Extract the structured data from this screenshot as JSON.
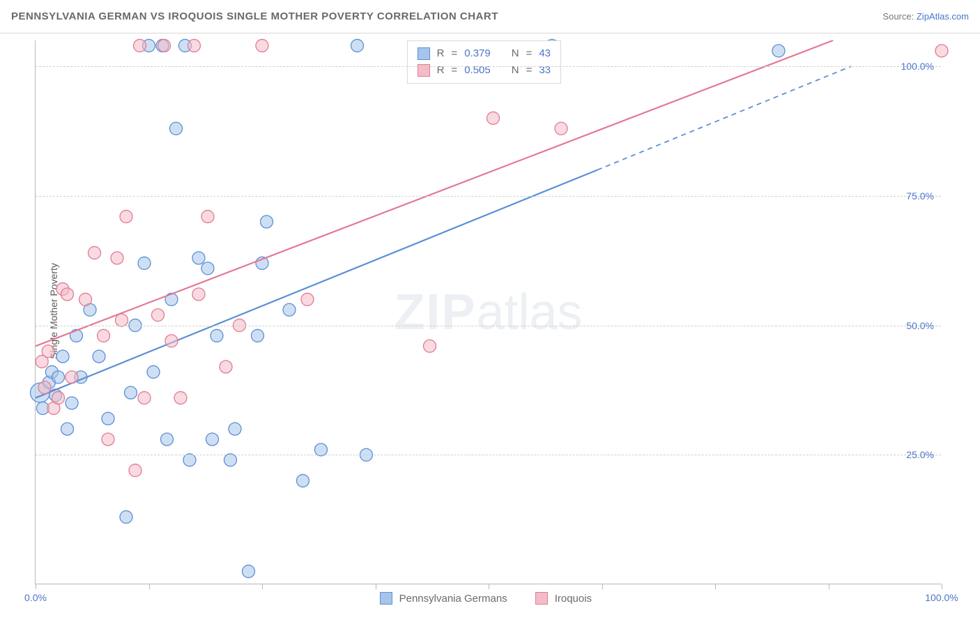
{
  "header": {
    "title": "PENNSYLVANIA GERMAN VS IROQUOIS SINGLE MOTHER POVERTY CORRELATION CHART",
    "source_label": "Source:",
    "source_link": "ZipAtlas.com"
  },
  "chart": {
    "type": "scatter",
    "ylabel": "Single Mother Poverty",
    "xlim": [
      0,
      100
    ],
    "ylim": [
      0,
      105
    ],
    "xtick_positions": [
      0,
      12.5,
      25,
      37.5,
      50,
      62.5,
      75,
      87.5,
      100
    ],
    "xtick_labels": {
      "0": "0.0%",
      "100": "100.0%"
    },
    "ytick_positions": [
      25,
      50,
      75,
      100
    ],
    "ytick_labels": [
      "25.0%",
      "50.0%",
      "75.0%",
      "100.0%"
    ],
    "grid_color": "#d0d0d0",
    "axis_color": "#b8b8b8",
    "background_color": "#ffffff",
    "label_fontsize": 14,
    "tick_color": "#4a74c9",
    "watermark": "ZIPatlas",
    "marker_radius": 9,
    "marker_opacity": 0.55,
    "series": [
      {
        "name": "Pennsylvania Germans",
        "color_fill": "#a7c4ea",
        "color_stroke": "#5b8fd6",
        "R": 0.379,
        "N": 43,
        "trend": {
          "x1": 0,
          "y1": 36,
          "x2": 62,
          "y2": 80,
          "dash_x2": 90,
          "dash_y2": 100
        },
        "points": [
          {
            "x": 0.5,
            "y": 37,
            "r": 14
          },
          {
            "x": 0.8,
            "y": 34
          },
          {
            "x": 1.5,
            "y": 39
          },
          {
            "x": 1.8,
            "y": 41
          },
          {
            "x": 2.2,
            "y": 36.5
          },
          {
            "x": 2.5,
            "y": 40
          },
          {
            "x": 3.0,
            "y": 44
          },
          {
            "x": 3.5,
            "y": 30
          },
          {
            "x": 4.0,
            "y": 35
          },
          {
            "x": 4.5,
            "y": 48
          },
          {
            "x": 5.0,
            "y": 40
          },
          {
            "x": 6.0,
            "y": 53
          },
          {
            "x": 7.0,
            "y": 44
          },
          {
            "x": 8.0,
            "y": 32
          },
          {
            "x": 10.0,
            "y": 13
          },
          {
            "x": 10.5,
            "y": 37
          },
          {
            "x": 11.0,
            "y": 50
          },
          {
            "x": 12.0,
            "y": 62
          },
          {
            "x": 12.5,
            "y": 104
          },
          {
            "x": 13.0,
            "y": 41
          },
          {
            "x": 14.0,
            "y": 104
          },
          {
            "x": 14.5,
            "y": 28
          },
          {
            "x": 15.0,
            "y": 55
          },
          {
            "x": 15.5,
            "y": 88
          },
          {
            "x": 16.5,
            "y": 104
          },
          {
            "x": 17.0,
            "y": 24
          },
          {
            "x": 18.0,
            "y": 63
          },
          {
            "x": 19.0,
            "y": 61
          },
          {
            "x": 19.5,
            "y": 28
          },
          {
            "x": 20.0,
            "y": 48
          },
          {
            "x": 21.5,
            "y": 24
          },
          {
            "x": 22.0,
            "y": 30
          },
          {
            "x": 23.5,
            "y": 2.5
          },
          {
            "x": 24.5,
            "y": 48
          },
          {
            "x": 25.0,
            "y": 62
          },
          {
            "x": 25.5,
            "y": 70
          },
          {
            "x": 28.0,
            "y": 53
          },
          {
            "x": 29.5,
            "y": 20
          },
          {
            "x": 31.5,
            "y": 26
          },
          {
            "x": 35.5,
            "y": 104
          },
          {
            "x": 36.5,
            "y": 25
          },
          {
            "x": 57.0,
            "y": 104
          },
          {
            "x": 82.0,
            "y": 103
          }
        ]
      },
      {
        "name": "Iroquois",
        "color_fill": "#f3bcc7",
        "color_stroke": "#e27a94",
        "R": 0.505,
        "N": 33,
        "trend": {
          "x1": 0,
          "y1": 46,
          "x2": 88,
          "y2": 105
        },
        "points": [
          {
            "x": 0.7,
            "y": 43
          },
          {
            "x": 1.0,
            "y": 38
          },
          {
            "x": 1.4,
            "y": 45
          },
          {
            "x": 2.0,
            "y": 34
          },
          {
            "x": 2.5,
            "y": 36
          },
          {
            "x": 3.0,
            "y": 57
          },
          {
            "x": 3.5,
            "y": 56
          },
          {
            "x": 4.0,
            "y": 40
          },
          {
            "x": 5.5,
            "y": 55
          },
          {
            "x": 6.5,
            "y": 64
          },
          {
            "x": 7.5,
            "y": 48
          },
          {
            "x": 8.0,
            "y": 28
          },
          {
            "x": 9.0,
            "y": 63
          },
          {
            "x": 9.5,
            "y": 51
          },
          {
            "x": 10.0,
            "y": 71
          },
          {
            "x": 11.0,
            "y": 22
          },
          {
            "x": 11.5,
            "y": 104
          },
          {
            "x": 12.0,
            "y": 36
          },
          {
            "x": 13.5,
            "y": 52
          },
          {
            "x": 14.2,
            "y": 104
          },
          {
            "x": 15.0,
            "y": 47
          },
          {
            "x": 16.0,
            "y": 36
          },
          {
            "x": 17.5,
            "y": 104
          },
          {
            "x": 18.0,
            "y": 56
          },
          {
            "x": 19.0,
            "y": 71
          },
          {
            "x": 21.0,
            "y": 42
          },
          {
            "x": 22.5,
            "y": 50
          },
          {
            "x": 25.0,
            "y": 104
          },
          {
            "x": 30.0,
            "y": 55
          },
          {
            "x": 43.5,
            "y": 46
          },
          {
            "x": 50.5,
            "y": 90
          },
          {
            "x": 58.0,
            "y": 88
          },
          {
            "x": 100.0,
            "y": 103
          }
        ]
      }
    ]
  },
  "stats_box": {
    "R_label": "R",
    "N_label": "N",
    "eq": "="
  },
  "legend": {
    "items": [
      "Pennsylvania Germans",
      "Iroquois"
    ]
  }
}
